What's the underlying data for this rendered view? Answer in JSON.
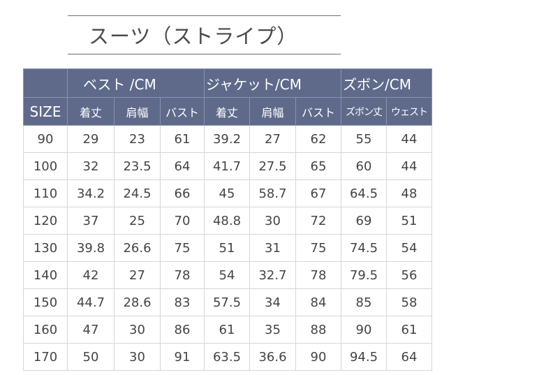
{
  "title": "スーツ（ストライプ）",
  "groups": [
    "ベスト /CM",
    "ジャケット/CM",
    "ズボン/CM"
  ],
  "columns": [
    "SIZE",
    "着丈",
    "肩幅",
    "バスト",
    "着丈",
    "肩幅",
    "バスト",
    "ズボン丈",
    "ウェスト"
  ],
  "rows": [
    [
      "90",
      "29",
      "23",
      "61",
      "39.2",
      "27",
      "62",
      "55",
      "44"
    ],
    [
      "100",
      "32",
      "23.5",
      "64",
      "41.7",
      "27.5",
      "65",
      "60",
      "44"
    ],
    [
      "110",
      "34.2",
      "24.5",
      "66",
      "45",
      "58.7",
      "67",
      "64.5",
      "48"
    ],
    [
      "120",
      "37",
      "25",
      "70",
      "48.8",
      "30",
      "72",
      "69",
      "51"
    ],
    [
      "130",
      "39.8",
      "26.6",
      "75",
      "51",
      "31",
      "75",
      "74.5",
      "54"
    ],
    [
      "140",
      "42",
      "27",
      "78",
      "54",
      "32.7",
      "78",
      "79.5",
      "56"
    ],
    [
      "150",
      "44.7",
      "28.6",
      "83",
      "57.5",
      "34",
      "84",
      "85",
      "58"
    ],
    [
      "160",
      "47",
      "30",
      "86",
      "61",
      "35",
      "88",
      "90",
      "61"
    ],
    [
      "170",
      "50",
      "30",
      "91",
      "63.5",
      "36.6",
      "90",
      "94.5",
      "64"
    ]
  ],
  "colors": {
    "header": "#5f6a8b",
    "text": "#444444"
  }
}
